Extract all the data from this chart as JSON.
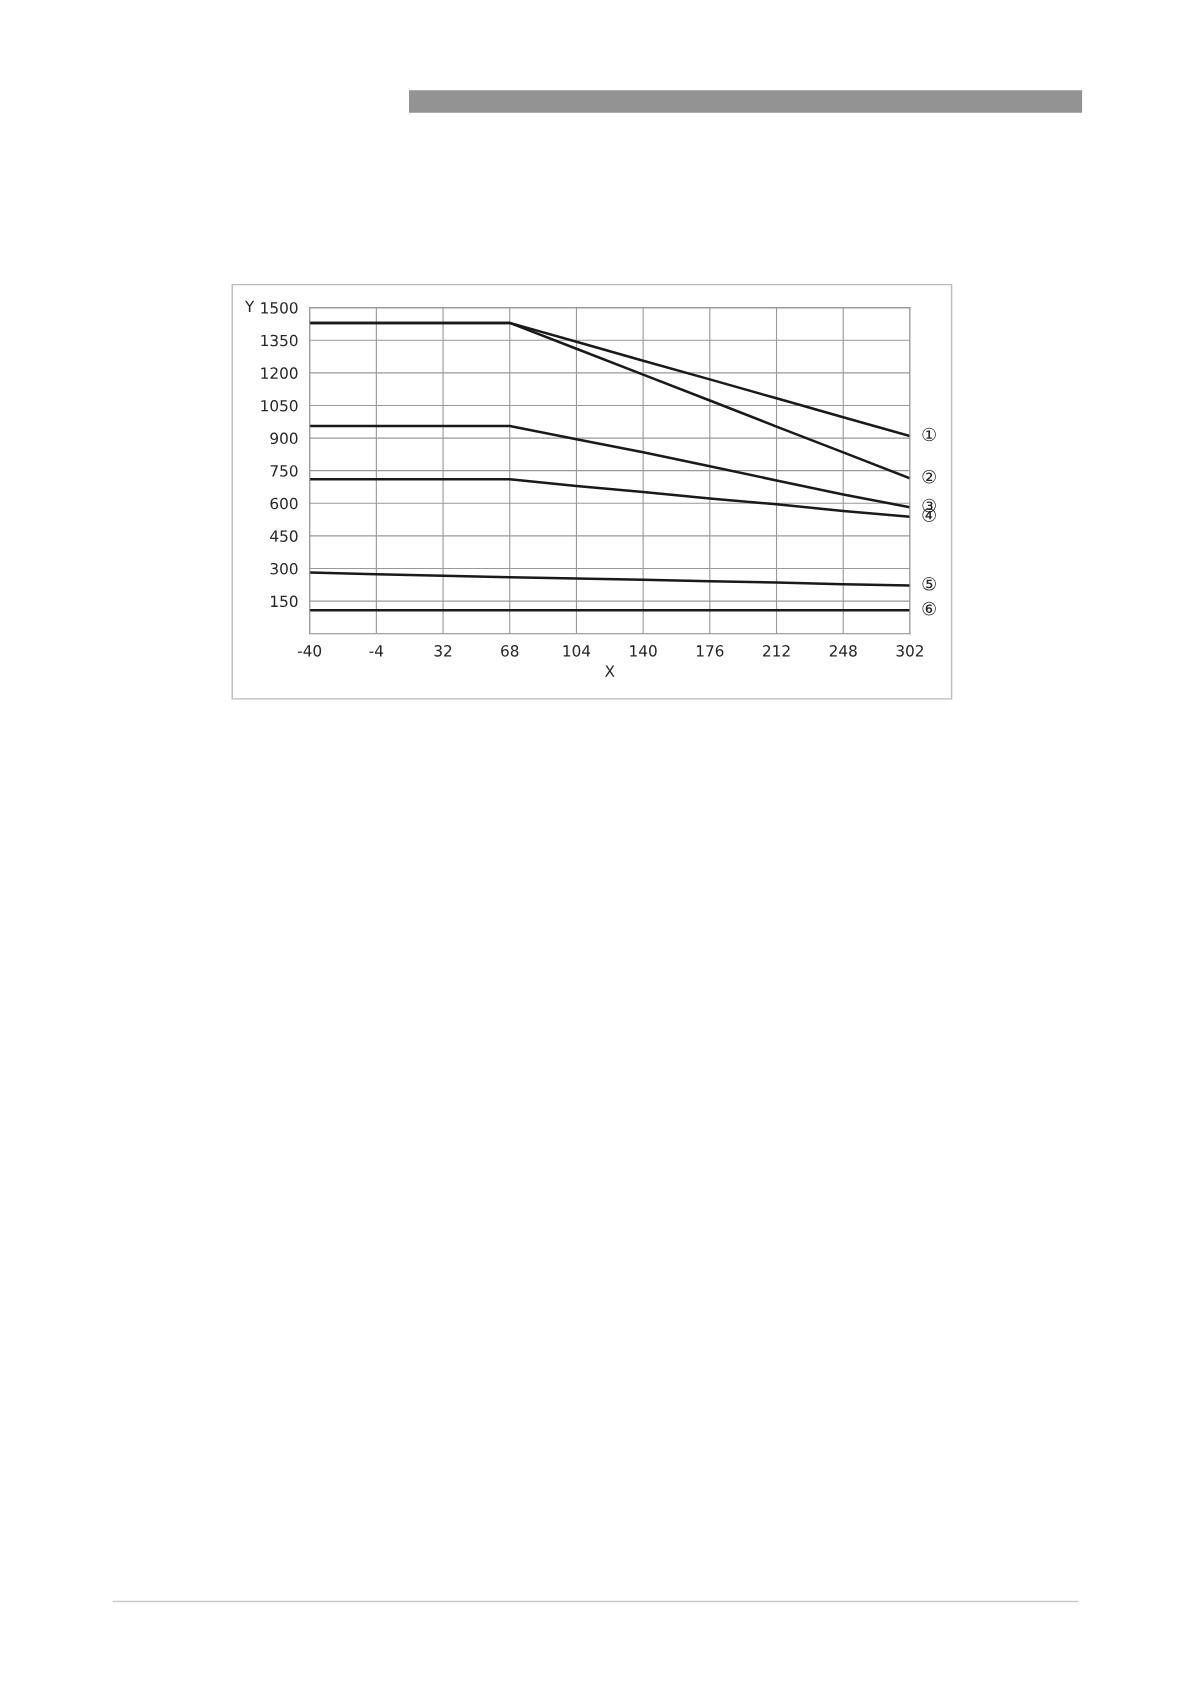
{
  "chart_data": {
    "type": "line",
    "xlabel": "X",
    "ylabel": "Y",
    "categories": [
      "-40",
      "-4",
      "32",
      "68",
      "104",
      "140",
      "176",
      "212",
      "248",
      "302"
    ],
    "ylim": [
      0,
      1500
    ],
    "yticks": [
      {
        "value": 0,
        "label": null
      },
      150,
      300,
      450,
      600,
      750,
      900,
      1050,
      1200,
      1350,
      1500
    ],
    "grid": true,
    "legend": false,
    "marker": "none",
    "line_style": "solid",
    "series": [
      {
        "name": "①",
        "color": "#1a1a1a",
        "values": [
          1430,
          1430,
          1430,
          1430,
          1343,
          1256,
          1170,
          1083,
          996,
          909
        ]
      },
      {
        "name": "②",
        "color": "#1a1a1a",
        "values": [
          1430,
          1430,
          1430,
          1430,
          1311,
          1192,
          1073,
          953,
          834,
          715
        ]
      },
      {
        "name": "③",
        "color": "#1a1a1a",
        "values": [
          956,
          956,
          956,
          956,
          895,
          835,
          770,
          705,
          640,
          582
        ]
      },
      {
        "name": "④",
        "color": "#1a1a1a",
        "values": [
          711,
          711,
          711,
          711,
          680,
          652,
          622,
          595,
          565,
          538
        ]
      },
      {
        "name": "⑤",
        "color": "#1a1a1a",
        "values": [
          281,
          274,
          267,
          260,
          254,
          248,
          241,
          235,
          228,
          222
        ]
      },
      {
        "name": "⑥",
        "color": "#1a1a1a",
        "values": [
          108,
          108,
          108,
          108,
          108,
          108,
          108,
          108,
          108,
          108
        ]
      }
    ]
  }
}
